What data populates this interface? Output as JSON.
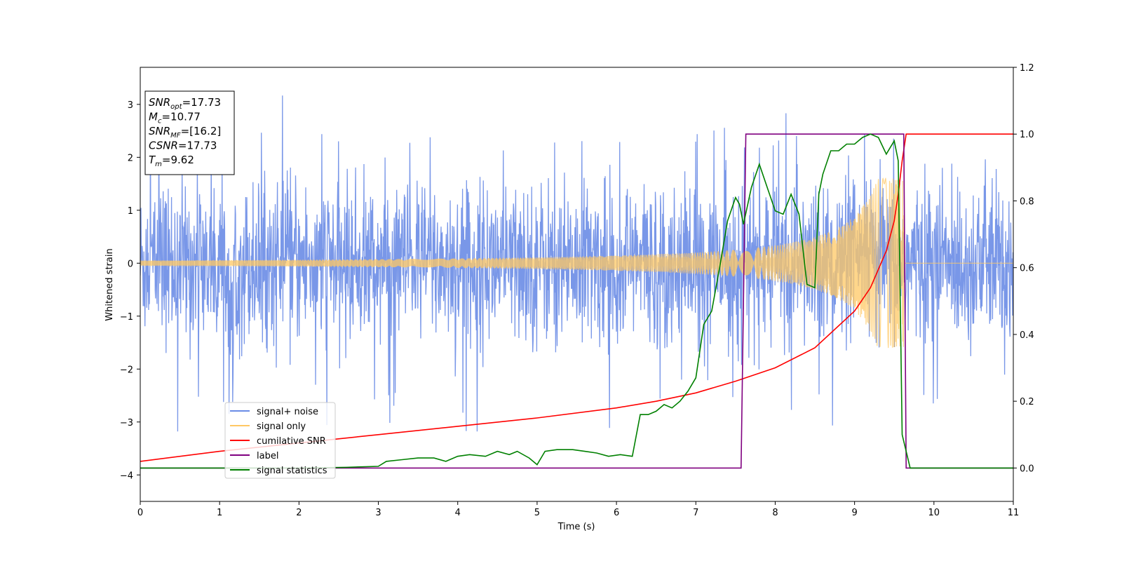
{
  "chart_data": {
    "type": "line",
    "xlabel": "Time (s)",
    "ylabel": "Whitened strain",
    "xlim": [
      0,
      11
    ],
    "ylim_left": [
      -4.5,
      3.7
    ],
    "ylim_right": [
      -0.1,
      1.2
    ],
    "x_ticks": [
      0,
      1,
      2,
      3,
      4,
      5,
      6,
      7,
      8,
      9,
      10,
      11
    ],
    "y_ticks_left": [
      -4,
      -3,
      -2,
      -1,
      0,
      1,
      2,
      3
    ],
    "y_ticks_left_labels": [
      "−4",
      "−3",
      "−2",
      "−1",
      "0",
      "1",
      "2",
      "3"
    ],
    "y_ticks_right": [
      0.0,
      0.2,
      0.4,
      0.6,
      0.8,
      1.0,
      1.2
    ],
    "y_ticks_right_labels": [
      "0.0",
      "0.2",
      "0.4",
      "0.6",
      "0.8",
      "1.0",
      "1.2"
    ],
    "grid": false,
    "legend_position": "lower-left",
    "info_box": {
      "lines": [
        {
          "base": "SNR",
          "sub": "opt",
          "value": "=17.73"
        },
        {
          "base": "M",
          "sub": "c",
          "value": "=10.77"
        },
        {
          "base": "SNR",
          "sub": "MF",
          "value": "=[16.2]"
        },
        {
          "base": "CSNR",
          "sub": "",
          "value": "=17.73"
        },
        {
          "base": "T",
          "sub": "m",
          "value": "=9.62"
        }
      ]
    },
    "series": [
      {
        "name": "signal+ noise",
        "color": "#6a8ce6",
        "axis": "left",
        "kind": "noise",
        "amplitude_std": 0.75,
        "spike_max": 3.35
      },
      {
        "name": "signal only",
        "color": "#ffc864",
        "axis": "left",
        "kind": "chirp",
        "start_amplitude": 0.05,
        "peak_amplitude": 1.6,
        "merger_time": 9.62
      },
      {
        "name": "cumilative SNR",
        "color": "#ff0000",
        "axis": "right",
        "x": [
          0,
          1,
          2,
          3,
          4,
          5,
          6,
          6.5,
          7,
          7.5,
          8,
          8.5,
          9,
          9.2,
          9.4,
          9.5,
          9.55,
          9.6,
          9.65,
          10,
          11
        ],
        "values": [
          0.02,
          0.05,
          0.075,
          0.1,
          0.125,
          0.15,
          0.18,
          0.2,
          0.225,
          0.26,
          0.3,
          0.36,
          0.47,
          0.54,
          0.65,
          0.74,
          0.82,
          0.92,
          1.0,
          1.0,
          1.0
        ]
      },
      {
        "name": "label",
        "color": "#800080",
        "axis": "right",
        "x": [
          0,
          7.57,
          7.63,
          9.62,
          9.65,
          11
        ],
        "values": [
          0.0,
          0.0,
          1.0,
          1.0,
          0.0,
          0.0
        ]
      },
      {
        "name": "signal statistics",
        "color": "#008000",
        "axis": "right",
        "x": [
          0,
          1,
          2,
          2.6,
          3.0,
          3.1,
          3.3,
          3.5,
          3.7,
          3.85,
          4.0,
          4.15,
          4.35,
          4.5,
          4.65,
          4.75,
          4.9,
          5.0,
          5.1,
          5.25,
          5.45,
          5.6,
          5.75,
          5.9,
          6.05,
          6.2,
          6.3,
          6.4,
          6.5,
          6.6,
          6.7,
          6.8,
          6.9,
          7.0,
          7.1,
          7.2,
          7.3,
          7.4,
          7.5,
          7.55,
          7.6,
          7.7,
          7.8,
          7.9,
          8.0,
          8.1,
          8.2,
          8.3,
          8.4,
          8.5,
          8.55,
          8.6,
          8.7,
          8.8,
          8.9,
          9.0,
          9.1,
          9.2,
          9.3,
          9.4,
          9.5,
          9.55,
          9.6,
          9.65,
          9.7,
          11
        ],
        "values": [
          0.0,
          0.0,
          0.0,
          0.002,
          0.005,
          0.02,
          0.025,
          0.03,
          0.03,
          0.02,
          0.035,
          0.04,
          0.035,
          0.05,
          0.04,
          0.05,
          0.03,
          0.01,
          0.05,
          0.055,
          0.055,
          0.05,
          0.045,
          0.035,
          0.04,
          0.035,
          0.16,
          0.16,
          0.17,
          0.19,
          0.18,
          0.2,
          0.23,
          0.27,
          0.43,
          0.47,
          0.6,
          0.74,
          0.81,
          0.79,
          0.73,
          0.84,
          0.91,
          0.84,
          0.77,
          0.76,
          0.82,
          0.76,
          0.55,
          0.54,
          0.82,
          0.88,
          0.95,
          0.95,
          0.97,
          0.97,
          0.99,
          1.0,
          0.99,
          0.94,
          0.98,
          0.92,
          0.1,
          0.05,
          0.0,
          0.0
        ]
      }
    ]
  }
}
